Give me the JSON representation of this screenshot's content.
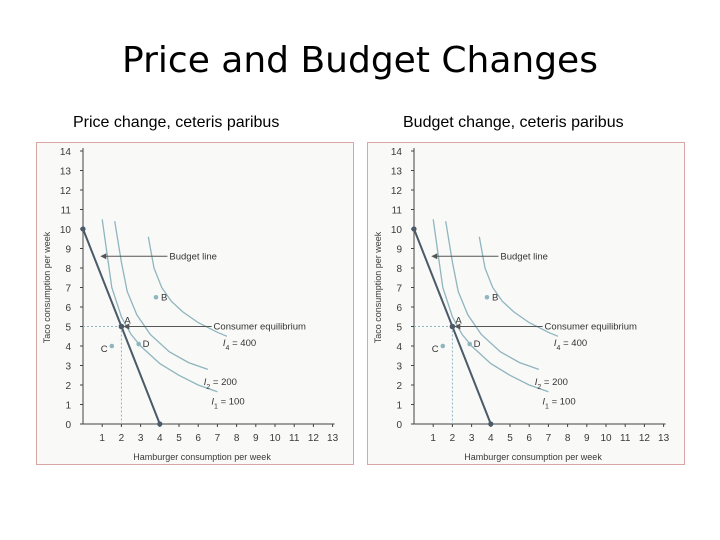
{
  "title": "Price and Budget Changes",
  "colors": {
    "budget": "#4a5a68",
    "indiff": "#8fb5bf",
    "axis": "#444444",
    "point": "#555555",
    "guide": "#8fb5bf",
    "frame": "#d9a5a5"
  },
  "chart_data": [
    {
      "type": "line",
      "subtitle": "Price change, ceteris paribus",
      "xlabel": "Hamburger consumption per week",
      "ylabel": "Taco consumption per week",
      "xlim": [
        0,
        13
      ],
      "ylim": [
        0,
        14
      ],
      "x_ticks": [
        1,
        2,
        3,
        4,
        5,
        6,
        7,
        8,
        9,
        10,
        11,
        12,
        13
      ],
      "y_ticks": [
        0,
        1,
        2,
        3,
        4,
        5,
        6,
        7,
        8,
        9,
        10,
        11,
        12,
        13,
        14
      ],
      "budget_line": {
        "label": "Budget line",
        "points": [
          [
            0,
            10
          ],
          [
            4,
            0
          ]
        ]
      },
      "indifference_curves": [
        {
          "name": "I",
          "sub": "1",
          "value_label": "= 100",
          "points": [
            [
              1.0,
              10.5
            ],
            [
              1.5,
              7.0
            ],
            [
              2.0,
              5.5
            ],
            [
              2.5,
              4.6
            ],
            [
              3.0,
              4.0
            ],
            [
              4.0,
              3.1
            ],
            [
              5.0,
              2.5
            ],
            [
              6.0,
              2.0
            ],
            [
              7.0,
              1.65
            ]
          ]
        },
        {
          "name": "I",
          "sub": "2",
          "value_label": "= 200",
          "points": [
            [
              1.65,
              10.4
            ],
            [
              2.0,
              8.3
            ],
            [
              2.3,
              6.8
            ],
            [
              2.8,
              5.6
            ],
            [
              3.5,
              4.6
            ],
            [
              4.5,
              3.7
            ],
            [
              5.5,
              3.15
            ],
            [
              6.5,
              2.8
            ]
          ]
        },
        {
          "name": "I",
          "sub": "4",
          "value_label": "= 400",
          "points": [
            [
              3.4,
              9.6
            ],
            [
              3.7,
              8.0
            ],
            [
              4.1,
              7.0
            ],
            [
              4.6,
              6.3
            ],
            [
              5.2,
              5.75
            ],
            [
              6.0,
              5.2
            ],
            [
              7.0,
              4.7
            ],
            [
              7.5,
              4.5
            ]
          ]
        }
      ],
      "points": [
        {
          "label": "A",
          "x": 2,
          "y": 5
        },
        {
          "label": "B",
          "x": 3.8,
          "y": 6.5
        },
        {
          "label": "C",
          "x": 1.5,
          "y": 4
        },
        {
          "label": "D",
          "x": 2.9,
          "y": 4.1
        }
      ],
      "equilibrium": {
        "label": "Consumer equilibrium",
        "x": 2,
        "y": 5
      }
    },
    {
      "type": "line",
      "subtitle": "Budget change, ceteris paribus",
      "xlabel": "Hamburger consumption per week",
      "ylabel": "Taco consumption per week",
      "xlim": [
        0,
        13
      ],
      "ylim": [
        0,
        14
      ],
      "x_ticks": [
        1,
        2,
        3,
        4,
        5,
        6,
        7,
        8,
        9,
        10,
        11,
        12,
        13
      ],
      "y_ticks": [
        0,
        1,
        2,
        3,
        4,
        5,
        6,
        7,
        8,
        9,
        10,
        11,
        12,
        13,
        14
      ],
      "budget_line": {
        "label": "Budget line",
        "points": [
          [
            0,
            10
          ],
          [
            4,
            0
          ]
        ]
      },
      "indifference_curves": [
        {
          "name": "I",
          "sub": "1",
          "value_label": "= 100",
          "points": [
            [
              1.0,
              10.5
            ],
            [
              1.5,
              7.0
            ],
            [
              2.0,
              5.5
            ],
            [
              2.5,
              4.6
            ],
            [
              3.0,
              4.0
            ],
            [
              4.0,
              3.1
            ],
            [
              5.0,
              2.5
            ],
            [
              6.0,
              2.0
            ],
            [
              7.0,
              1.65
            ]
          ]
        },
        {
          "name": "I",
          "sub": "2",
          "value_label": "= 200",
          "points": [
            [
              1.65,
              10.4
            ],
            [
              2.0,
              8.3
            ],
            [
              2.3,
              6.8
            ],
            [
              2.8,
              5.6
            ],
            [
              3.5,
              4.6
            ],
            [
              4.5,
              3.7
            ],
            [
              5.5,
              3.15
            ],
            [
              6.5,
              2.8
            ]
          ]
        },
        {
          "name": "I",
          "sub": "4",
          "value_label": "= 400",
          "points": [
            [
              3.4,
              9.6
            ],
            [
              3.7,
              8.0
            ],
            [
              4.1,
              7.0
            ],
            [
              4.6,
              6.3
            ],
            [
              5.2,
              5.75
            ],
            [
              6.0,
              5.2
            ],
            [
              7.0,
              4.7
            ],
            [
              7.5,
              4.5
            ]
          ]
        }
      ],
      "points": [
        {
          "label": "A",
          "x": 2,
          "y": 5
        },
        {
          "label": "B",
          "x": 3.8,
          "y": 6.5
        },
        {
          "label": "C",
          "x": 1.5,
          "y": 4
        },
        {
          "label": "D",
          "x": 2.9,
          "y": 4.1
        }
      ],
      "equilibrium": {
        "label": "Consumer equilibrium",
        "x": 2,
        "y": 5
      }
    }
  ]
}
